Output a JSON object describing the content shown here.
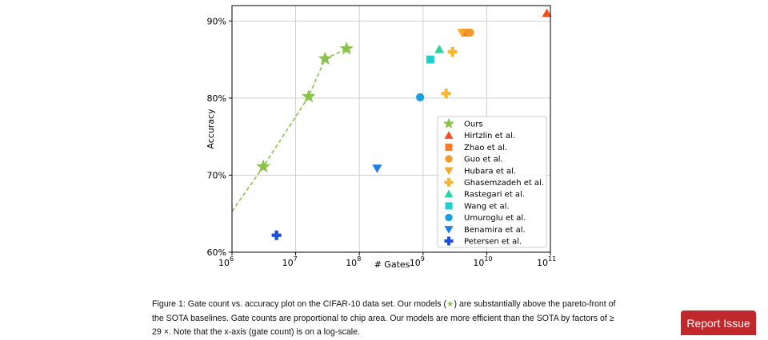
{
  "chart_data": {
    "type": "scatter",
    "title": "",
    "xlabel": "# Gates",
    "ylabel": "Accuracy",
    "xscale": "log",
    "xlim": [
      1000000,
      100000000000
    ],
    "ylim": [
      60,
      92
    ],
    "grid": true,
    "legend_position": "lower-right",
    "x_ticks": [
      {
        "value": 1000000,
        "base": "10",
        "exp": "6"
      },
      {
        "value": 10000000,
        "base": "10",
        "exp": "7"
      },
      {
        "value": 100000000,
        "base": "10",
        "exp": "8"
      },
      {
        "value": 1000000000,
        "base": "10",
        "exp": "9"
      },
      {
        "value": 10000000000,
        "base": "10",
        "exp": "10"
      },
      {
        "value": 100000000000,
        "base": "10",
        "exp": "11"
      }
    ],
    "y_ticks": [
      {
        "value": 60,
        "label": "60%"
      },
      {
        "value": 70,
        "label": "70%"
      },
      {
        "value": 80,
        "label": "80%"
      },
      {
        "value": 90,
        "label": "90%"
      }
    ],
    "series": [
      {
        "name": "Ours",
        "marker": "star",
        "color": "#8bc34a",
        "points": [
          [
            3100000,
            71.1
          ],
          [
            16000000,
            80.2
          ],
          [
            29000000,
            85.1
          ],
          [
            63000000,
            86.4
          ]
        ]
      },
      {
        "name": "Hirtzlin et al.",
        "marker": "triangle-up",
        "color": "#f4511e",
        "points": [
          [
            88000000000,
            91.0
          ]
        ]
      },
      {
        "name": "Zhao et al.",
        "marker": "square",
        "color": "#f57c2a",
        "points": [
          [
            4600000000,
            88.5
          ]
        ]
      },
      {
        "name": "Guo et al.",
        "marker": "circle",
        "color": "#f59b2a",
        "points": [
          [
            5500000000,
            88.5
          ]
        ]
      },
      {
        "name": "Hubara et al.",
        "marker": "triangle-down",
        "color": "#f4a92a",
        "points": [
          [
            4100000000,
            88.5
          ]
        ]
      },
      {
        "name": "Ghasemzadeh et al.",
        "marker": "plus",
        "color": "#f7b731",
        "points": [
          [
            2900000000,
            86.0
          ],
          [
            2300000000,
            80.6
          ]
        ]
      },
      {
        "name": "Rastegari et al.",
        "marker": "triangle-up",
        "color": "#2ad4a2",
        "points": [
          [
            1800000000,
            86.3
          ]
        ]
      },
      {
        "name": "Wang et al.",
        "marker": "square",
        "color": "#1cd0d0",
        "points": [
          [
            1300000000,
            85.0
          ]
        ]
      },
      {
        "name": "Umuroglu et al.",
        "marker": "circle",
        "color": "#1b9de2",
        "points": [
          [
            900000000,
            80.1
          ]
        ]
      },
      {
        "name": "Benamira et al.",
        "marker": "triangle-down",
        "color": "#1d7fe3",
        "points": [
          [
            190000000,
            70.9
          ]
        ]
      },
      {
        "name": "Petersen et al.",
        "marker": "plus",
        "color": "#1a4fe0",
        "points": [
          [
            5000000,
            62.2
          ]
        ]
      }
    ],
    "pareto_line": {
      "color": "#8bc34a",
      "points": [
        [
          1000000,
          65.3
        ],
        [
          3100000,
          71.1
        ],
        [
          16000000,
          80.2
        ],
        [
          29000000,
          85.1
        ],
        [
          63000000,
          86.4
        ]
      ]
    }
  },
  "caption": {
    "prefix": "Figure 1: Gate count vs. accuracy plot on the CIFAR-10 data set. Our models (",
    "star": "★",
    "middle": ") are substantially above the pareto-front of the SOTA baselines. Gate counts are proportional to chip area. Our models are more efficient than the SOTA by factors of ",
    "factor": "≥ 29 ×",
    "suffix": ". Note that the x-axis (gate count) is on a log-scale."
  },
  "report_button": {
    "label": "Report Issue",
    "color": "#c0282b"
  }
}
